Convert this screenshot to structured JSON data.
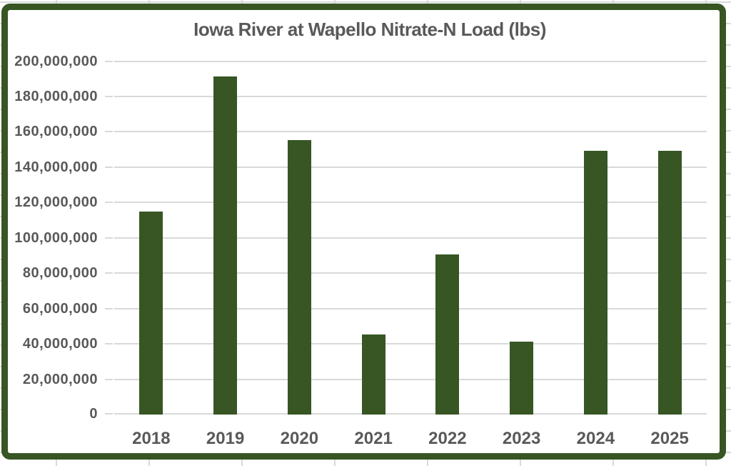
{
  "chart_data": {
    "type": "bar",
    "title": "Iowa River at Wapello Nitrate-N Load (lbs)",
    "categories": [
      "2018",
      "2019",
      "2020",
      "2021",
      "2022",
      "2023",
      "2024",
      "2025"
    ],
    "values": [
      114800000,
      191000000,
      155000000,
      45300000,
      90400000,
      41400000,
      149000000,
      149000000
    ],
    "xlabel": "",
    "ylabel": "",
    "ylim": [
      0,
      200000000
    ],
    "ytick_interval": 20000000,
    "ytick_labels": [
      "0",
      "20,000,000",
      "40,000,000",
      "60,000,000",
      "80,000,000",
      "100,000,000",
      "120,000,000",
      "140,000,000",
      "160,000,000",
      "180,000,000",
      "200,000,000"
    ],
    "grid": true,
    "legend": false,
    "colors": {
      "bar": "#375623",
      "chart_border": "#375623",
      "gridline": "#d9d9d9",
      "label_text": "#595959",
      "background": "#ffffff"
    }
  }
}
